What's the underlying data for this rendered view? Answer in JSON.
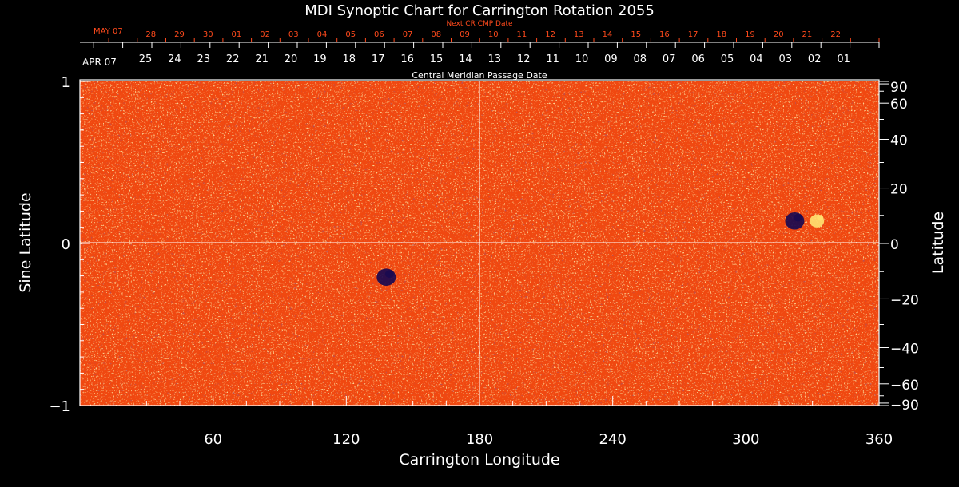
{
  "chart_data": {
    "type": "heatmap",
    "title": "MDI Synoptic Chart for Carrington Rotation 2055",
    "xlabel": "Carrington Longitude",
    "ylabel_left": "Sine Latitude",
    "ylabel_right": "Latitude",
    "xlim": [
      0,
      360
    ],
    "ylim": [
      -1,
      1
    ],
    "x_ticks": [
      "60",
      "120",
      "180",
      "240",
      "300",
      "360"
    ],
    "y_ticks_left": [
      "1",
      "0",
      "−1"
    ],
    "y_ticks_right": [
      "90",
      "60",
      "40",
      "20",
      "0",
      "−20",
      "−40",
      "−60",
      "−90"
    ],
    "bottom_axis": {
      "label": "Central Meridian Passage Date",
      "month": "APR 07",
      "dates": [
        "25",
        "24",
        "23",
        "22",
        "21",
        "20",
        "19",
        "18",
        "17",
        "16",
        "15",
        "14",
        "13",
        "12",
        "11",
        "10",
        "09",
        "08",
        "07",
        "06",
        "05",
        "04",
        "03",
        "02",
        "01"
      ]
    },
    "top_axis": {
      "label": "Next CR CMP Date",
      "month": "MAY 07",
      "dates": [
        "22",
        "21",
        "20",
        "19",
        "18",
        "17",
        "16",
        "15",
        "14",
        "13",
        "12",
        "11",
        "10",
        "09",
        "08",
        "07",
        "06",
        "05",
        "04",
        "03",
        "02",
        "01",
        "30",
        "29",
        "28"
      ]
    },
    "colors": {
      "background": "#000000",
      "field_base": "#f04810",
      "positive_polarity": "#ffe070",
      "negative_polarity": "#1a0a50",
      "axis_text": "#ffffff",
      "top_axis_text": "#ff4a1c"
    },
    "active_regions": [
      {
        "longitude": 322,
        "latitude": 8,
        "polarity": "negative"
      },
      {
        "longitude": 332,
        "latitude": 8,
        "polarity": "positive"
      },
      {
        "longitude": 138,
        "latitude": -12,
        "polarity": "negative"
      }
    ]
  }
}
